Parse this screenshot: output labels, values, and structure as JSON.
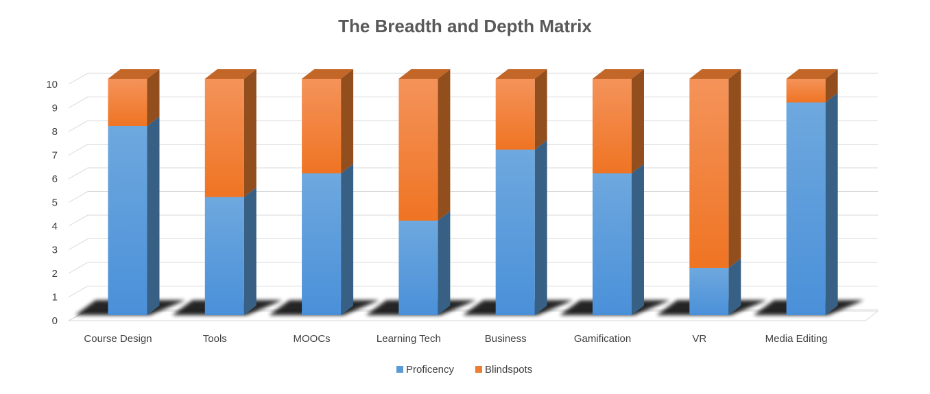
{
  "chart_data": {
    "type": "bar",
    "stacked": true,
    "three_d": true,
    "title": "The Breadth and Depth Matrix",
    "xlabel": "",
    "ylabel": "",
    "categories": [
      "Course Design",
      "Tools",
      "MOOCs",
      "Learning Tech",
      "Business",
      "Gamification",
      "VR",
      "Media Editing"
    ],
    "series": [
      {
        "name": "Proficency",
        "values": [
          8,
          5,
          6,
          4,
          7,
          6,
          2,
          9
        ],
        "color": "#5b9bd5"
      },
      {
        "name": "Blindspots",
        "values": [
          2,
          5,
          4,
          6,
          3,
          4,
          8,
          1
        ],
        "color": "#ed7d31"
      }
    ],
    "ylim": [
      0,
      10
    ],
    "yticks": [
      "0",
      "1",
      "2",
      "3",
      "4",
      "5",
      "6",
      "7",
      "8",
      "9",
      "10"
    ],
    "grid": true,
    "legend_position": "bottom"
  }
}
